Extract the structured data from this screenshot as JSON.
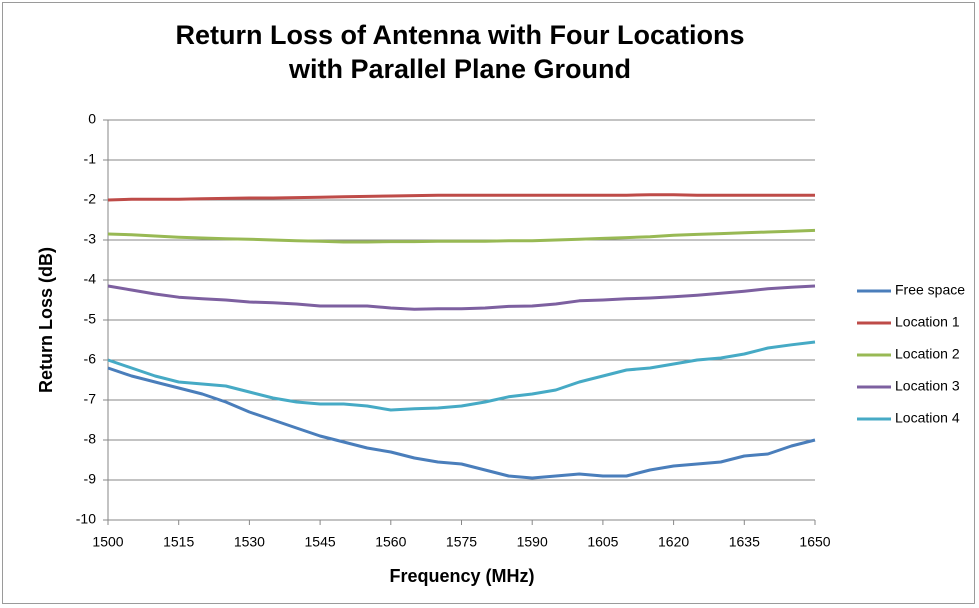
{
  "chart_data": {
    "type": "line",
    "title": "Return Loss of Antenna with Four Locations with Parallel Plane Ground",
    "x_label": "Frequency (MHz)",
    "y_label": "Return Loss (dB)",
    "x": [
      1500,
      1505,
      1510,
      1515,
      1520,
      1525,
      1530,
      1535,
      1540,
      1545,
      1550,
      1555,
      1560,
      1565,
      1570,
      1575,
      1580,
      1585,
      1590,
      1595,
      1600,
      1605,
      1610,
      1615,
      1620,
      1625,
      1630,
      1635,
      1640,
      1645,
      1650
    ],
    "series": [
      {
        "name": "Free space",
        "color": "#4a7ebb",
        "values": [
          -6.2,
          -6.4,
          -6.55,
          -6.7,
          -6.85,
          -7.05,
          -7.3,
          -7.5,
          -7.7,
          -7.9,
          -8.05,
          -8.2,
          -8.3,
          -8.45,
          -8.55,
          -8.6,
          -8.75,
          -8.9,
          -8.95,
          -8.9,
          -8.85,
          -8.9,
          -8.9,
          -8.75,
          -8.65,
          -8.6,
          -8.55,
          -8.4,
          -8.35,
          -8.15,
          -8.0
        ]
      },
      {
        "name": "Location 1",
        "color": "#be4b48",
        "values": [
          -2.0,
          -1.98,
          -1.98,
          -1.98,
          -1.97,
          -1.96,
          -1.95,
          -1.95,
          -1.94,
          -1.93,
          -1.92,
          -1.91,
          -1.9,
          -1.89,
          -1.88,
          -1.88,
          -1.88,
          -1.88,
          -1.88,
          -1.88,
          -1.88,
          -1.88,
          -1.88,
          -1.87,
          -1.87,
          -1.88,
          -1.88,
          -1.88,
          -1.88,
          -1.88,
          -1.88
        ]
      },
      {
        "name": "Location 2",
        "color": "#98b954",
        "values": [
          -2.85,
          -2.87,
          -2.9,
          -2.93,
          -2.95,
          -2.97,
          -2.98,
          -3.0,
          -3.02,
          -3.03,
          -3.05,
          -3.05,
          -3.04,
          -3.04,
          -3.03,
          -3.03,
          -3.03,
          -3.02,
          -3.02,
          -3.0,
          -2.98,
          -2.96,
          -2.94,
          -2.92,
          -2.88,
          -2.86,
          -2.84,
          -2.82,
          -2.8,
          -2.78,
          -2.76
        ]
      },
      {
        "name": "Location 3",
        "color": "#7d60a0",
        "values": [
          -4.15,
          -4.25,
          -4.35,
          -4.43,
          -4.47,
          -4.5,
          -4.55,
          -4.57,
          -4.6,
          -4.65,
          -4.65,
          -4.65,
          -4.7,
          -4.73,
          -4.72,
          -4.72,
          -4.7,
          -4.66,
          -4.65,
          -4.6,
          -4.52,
          -4.5,
          -4.47,
          -4.45,
          -4.42,
          -4.38,
          -4.33,
          -4.28,
          -4.22,
          -4.18,
          -4.15
        ]
      },
      {
        "name": "Location 4",
        "color": "#46aac5",
        "values": [
          -6.0,
          -6.2,
          -6.4,
          -6.55,
          -6.6,
          -6.65,
          -6.8,
          -6.95,
          -7.05,
          -7.1,
          -7.1,
          -7.15,
          -7.25,
          -7.22,
          -7.2,
          -7.15,
          -7.05,
          -6.92,
          -6.85,
          -6.75,
          -6.55,
          -6.4,
          -6.25,
          -6.2,
          -6.1,
          -6.0,
          -5.95,
          -5.85,
          -5.7,
          -5.62,
          -5.55
        ]
      }
    ],
    "xlim": [
      1500,
      1650
    ],
    "xticks": [
      1500,
      1515,
      1530,
      1545,
      1560,
      1575,
      1590,
      1605,
      1620,
      1635,
      1650
    ],
    "ylim": [
      -10,
      0
    ],
    "yticks": [
      -10,
      -9,
      -8,
      -7,
      -6,
      -5,
      -4,
      -3,
      -2,
      -1,
      0
    ],
    "grid": true,
    "legend": "right"
  }
}
